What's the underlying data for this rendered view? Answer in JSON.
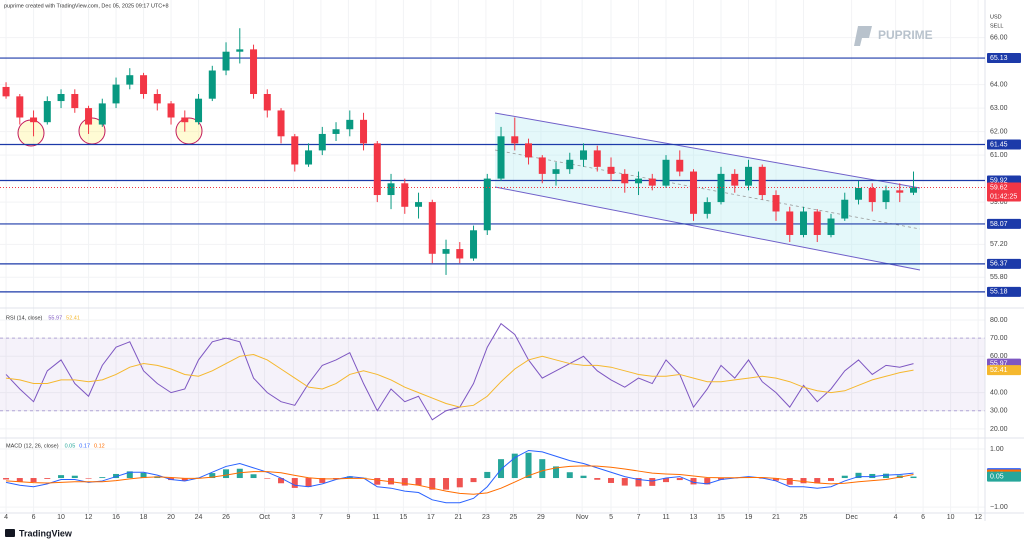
{
  "header": {
    "credit": "puprime created with TradingView.com, Dec 05, 2025 09:17 UTC+8",
    "brand": "PUPRIME",
    "footer": "TradingView"
  },
  "chart_data": [
    {
      "type": "candlestick",
      "currency": "USD",
      "side": "SELL",
      "up_color": "#089981",
      "down_color": "#f23645",
      "open": [
        63.9,
        63.5,
        62.6,
        62.4,
        63.3,
        63.6,
        63.0,
        62.3,
        63.2,
        64.0,
        64.4,
        63.6,
        63.2,
        62.6,
        62.4,
        63.4,
        64.6,
        65.4,
        65.5,
        63.6,
        62.9,
        61.8,
        60.6,
        61.2,
        61.9,
        62.1,
        62.5,
        61.5,
        59.3,
        59.8,
        58.8,
        59.0,
        56.8,
        57.0,
        56.6,
        57.8,
        60.0,
        61.8,
        61.5,
        60.9,
        60.2,
        60.4,
        60.8,
        61.2,
        60.5,
        60.2,
        59.8,
        60.0,
        59.7,
        60.8,
        60.3,
        58.5,
        59.0,
        60.2,
        59.7,
        60.5,
        59.3,
        58.6,
        57.6,
        58.6,
        57.6,
        58.3,
        59.1,
        59.6,
        59.0,
        59.5,
        59.4
      ],
      "high": [
        64.1,
        63.6,
        62.9,
        63.5,
        63.8,
        63.8,
        63.1,
        63.4,
        64.3,
        64.7,
        64.5,
        63.8,
        63.3,
        62.9,
        63.6,
        64.8,
        65.8,
        66.4,
        65.7,
        63.8,
        63.0,
        61.9,
        61.5,
        62.2,
        62.4,
        62.9,
        62.8,
        61.6,
        60.2,
        60.0,
        59.4,
        59.1,
        57.4,
        57.3,
        58.0,
        60.2,
        62.2,
        62.6,
        61.7,
        61.0,
        60.7,
        61.1,
        61.5,
        61.4,
        60.9,
        60.4,
        60.3,
        60.2,
        61.0,
        61.2,
        60.4,
        59.2,
        60.5,
        60.4,
        60.8,
        60.6,
        59.5,
        58.8,
        58.8,
        58.7,
        58.5,
        59.4,
        59.9,
        59.8,
        59.7,
        59.8,
        60.3
      ],
      "low": [
        63.4,
        62.3,
        61.8,
        62.3,
        63.0,
        62.8,
        61.9,
        62.2,
        63.0,
        63.8,
        63.4,
        62.9,
        62.3,
        62.0,
        62.3,
        63.3,
        64.4,
        64.9,
        63.4,
        62.6,
        61.5,
        60.3,
        60.5,
        61.0,
        61.6,
        61.8,
        61.2,
        59.0,
        58.7,
        58.5,
        58.3,
        56.4,
        55.9,
        56.4,
        56.5,
        57.6,
        59.9,
        61.2,
        60.6,
        59.8,
        59.7,
        60.2,
        60.5,
        60.3,
        59.9,
        59.4,
        59.3,
        59.5,
        59.6,
        60.1,
        58.2,
        58.3,
        58.9,
        59.4,
        59.5,
        59.1,
        58.2,
        57.3,
        57.5,
        57.3,
        57.5,
        58.2,
        58.9,
        58.6,
        58.7,
        59.0,
        59.3
      ],
      "close": [
        63.5,
        62.6,
        62.4,
        63.3,
        63.6,
        63.0,
        62.3,
        63.2,
        64.0,
        64.4,
        63.6,
        63.2,
        62.6,
        62.4,
        63.4,
        64.6,
        65.4,
        65.5,
        63.6,
        62.9,
        61.8,
        60.6,
        61.2,
        61.9,
        62.1,
        62.5,
        61.5,
        59.3,
        59.8,
        58.8,
        59.0,
        56.8,
        57.0,
        56.6,
        57.8,
        60.0,
        61.8,
        61.5,
        60.9,
        60.2,
        60.4,
        60.8,
        61.2,
        60.5,
        60.2,
        59.8,
        60.0,
        59.7,
        60.8,
        60.3,
        58.5,
        59.0,
        60.2,
        59.7,
        60.5,
        59.3,
        58.6,
        57.6,
        58.6,
        57.6,
        58.3,
        59.1,
        59.6,
        59.0,
        59.5,
        59.4,
        59.62
      ],
      "xlim": [
        -0.44,
        71.2
      ],
      "xticks": [
        {
          "value": 0,
          "label": "4"
        },
        {
          "value": 2,
          "label": "6"
        },
        {
          "value": 4,
          "label": "10"
        },
        {
          "value": 6,
          "label": "12"
        },
        {
          "value": 8,
          "label": "16"
        },
        {
          "value": 10,
          "label": "18"
        },
        {
          "value": 12,
          "label": "20"
        },
        {
          "value": 14,
          "label": "24"
        },
        {
          "value": 16,
          "label": "26"
        },
        {
          "value": 18.8,
          "label": "Oct"
        },
        {
          "value": 20.9,
          "label": "3"
        },
        {
          "value": 22.9,
          "label": "7"
        },
        {
          "value": 24.9,
          "label": "9"
        },
        {
          "value": 26.9,
          "label": "11"
        },
        {
          "value": 28.9,
          "label": "15"
        },
        {
          "value": 30.9,
          "label": "17"
        },
        {
          "value": 32.9,
          "label": "21"
        },
        {
          "value": 34.9,
          "label": "23"
        },
        {
          "value": 36.9,
          "label": "25"
        },
        {
          "value": 38.9,
          "label": "29"
        },
        {
          "value": 41.9,
          "label": "Nov"
        },
        {
          "value": 44,
          "label": "5"
        },
        {
          "value": 46,
          "label": "7"
        },
        {
          "value": 48,
          "label": "11"
        },
        {
          "value": 50,
          "label": "13"
        },
        {
          "value": 52,
          "label": "15"
        },
        {
          "value": 54,
          "label": "19"
        },
        {
          "value": 56,
          "label": "21"
        },
        {
          "value": 58,
          "label": "25"
        },
        {
          "value": 61.5,
          "label": "Dec"
        },
        {
          "value": 64.7,
          "label": "4"
        },
        {
          "value": 66.7,
          "label": "6"
        },
        {
          "value": 68.7,
          "label": "10"
        },
        {
          "value": 70.7,
          "label": "12"
        }
      ],
      "ylim": [
        54.62,
        67.09
      ],
      "yticks": [
        {
          "value": 66,
          "label": "66.00"
        },
        {
          "value": 64,
          "label": "64.00"
        },
        {
          "value": 63,
          "label": "63.00"
        },
        {
          "value": 62,
          "label": "62.00"
        },
        {
          "value": 61,
          "label": "61.00"
        },
        {
          "value": 59,
          "label": "59.00"
        },
        {
          "value": 57.2,
          "label": "57.20"
        },
        {
          "value": 55.8,
          "label": "55.80"
        }
      ],
      "levels": [
        65.13,
        61.45,
        59.92,
        58.07,
        56.37,
        55.18
      ],
      "level_color": "#1c3aa9",
      "last_price": 59.62,
      "countdown": "01:42:25",
      "last_color": "#f23645"
    },
    {
      "type": "line",
      "title": "RSI (14, close)",
      "series": [
        {
          "color": "#7e57c2",
          "values": [
            50,
            42,
            35,
            52,
            58,
            45,
            38,
            55,
            65,
            68,
            52,
            45,
            40,
            42,
            58,
            68,
            70,
            68,
            48,
            40,
            35,
            33,
            45,
            55,
            58,
            62,
            45,
            30,
            42,
            35,
            38,
            25,
            30,
            32,
            45,
            65,
            78,
            72,
            58,
            48,
            52,
            56,
            60,
            52,
            47,
            43,
            48,
            45,
            58,
            50,
            32,
            42,
            55,
            48,
            58,
            46,
            40,
            32,
            44,
            35,
            42,
            52,
            58,
            50,
            55,
            54,
            55.97
          ]
        },
        {
          "color": "#f5b82e",
          "values": [
            48,
            47,
            45,
            45,
            47,
            47,
            46,
            47,
            50,
            54,
            56,
            55,
            53,
            50,
            49,
            52,
            56,
            60,
            61,
            58,
            53,
            48,
            43,
            42,
            45,
            50,
            52,
            50,
            47,
            43,
            40,
            37,
            34,
            32,
            33,
            38,
            46,
            53,
            58,
            60,
            58,
            56,
            55,
            55,
            54,
            52,
            50,
            49,
            49,
            50,
            48,
            46,
            46,
            47,
            48,
            49,
            48,
            46,
            43,
            41,
            40,
            41,
            44,
            47,
            49,
            51,
            52.41
          ]
        }
      ],
      "band": [
        30,
        70
      ],
      "ylim": [
        16.1,
        84.4
      ],
      "yticks": [
        {
          "value": 80,
          "label": "80.00"
        },
        {
          "value": 70,
          "label": "70.00"
        },
        {
          "value": 60,
          "label": "60.00"
        },
        {
          "value": 40,
          "label": "40.00"
        },
        {
          "value": 30,
          "label": "30.00"
        },
        {
          "value": 20,
          "label": "20.00"
        }
      ]
    },
    {
      "type": "macd",
      "title": "MACD (12, 26, close)",
      "series": [
        {
          "color": "#26a69a",
          "down_color": "#ef5350",
          "values": [
            -0.05,
            -0.12,
            -0.14,
            -0.03,
            0.1,
            0.08,
            -0.02,
            0.03,
            0.14,
            0.23,
            0.18,
            0.06,
            -0.07,
            -0.09,
            0.01,
            0.17,
            0.3,
            0.32,
            0.13,
            -0.02,
            -0.18,
            -0.34,
            -0.31,
            -0.17,
            -0.02,
            0.06,
            0.01,
            -0.23,
            -0.22,
            -0.26,
            -0.25,
            -0.4,
            -0.4,
            -0.32,
            -0.14,
            0.21,
            0.65,
            0.84,
            0.87,
            0.65,
            0.4,
            0.2,
            0.08,
            -0.06,
            -0.17,
            -0.26,
            -0.29,
            -0.27,
            -0.14,
            -0.07,
            -0.22,
            -0.22,
            -0.06,
            -0.01,
            0.03,
            -0.02,
            -0.09,
            -0.23,
            -0.18,
            -0.18,
            -0.1,
            0.08,
            0.18,
            0.14,
            0.15,
            0.09,
            0.05
          ]
        },
        {
          "color": "#2962ff",
          "values": [
            -0.15,
            -0.25,
            -0.3,
            -0.2,
            -0.05,
            -0.05,
            -0.15,
            -0.1,
            0.05,
            0.2,
            0.2,
            0.1,
            -0.05,
            -0.1,
            0.0,
            0.2,
            0.4,
            0.5,
            0.35,
            0.2,
            0.0,
            -0.25,
            -0.3,
            -0.2,
            -0.05,
            0.05,
            0.0,
            -0.3,
            -0.35,
            -0.45,
            -0.5,
            -0.75,
            -0.85,
            -0.85,
            -0.7,
            -0.3,
            0.3,
            0.7,
            0.95,
            0.9,
            0.75,
            0.6,
            0.5,
            0.35,
            0.2,
            0.05,
            -0.05,
            -0.1,
            0.0,
            0.05,
            -0.15,
            -0.2,
            -0.05,
            0.0,
            0.05,
            0.0,
            -0.1,
            -0.3,
            -0.3,
            -0.35,
            -0.3,
            -0.1,
            0.05,
            0.05,
            0.1,
            0.12,
            0.17
          ]
        },
        {
          "color": "#ff6d00",
          "values": [
            -0.1,
            -0.13,
            -0.16,
            -0.17,
            -0.15,
            -0.13,
            -0.13,
            -0.13,
            -0.09,
            -0.03,
            0.02,
            0.04,
            0.02,
            -0.01,
            -0.01,
            0.03,
            0.1,
            0.18,
            0.22,
            0.22,
            0.18,
            0.09,
            0.01,
            -0.03,
            -0.03,
            -0.01,
            -0.01,
            -0.07,
            -0.13,
            -0.19,
            -0.25,
            -0.35,
            -0.45,
            -0.53,
            -0.56,
            -0.51,
            -0.35,
            -0.14,
            0.08,
            0.25,
            0.35,
            0.4,
            0.42,
            0.41,
            0.37,
            0.31,
            0.24,
            0.17,
            0.14,
            0.12,
            0.07,
            0.02,
            0.01,
            0.01,
            0.02,
            0.02,
            -0.01,
            -0.07,
            -0.12,
            -0.17,
            -0.2,
            -0.18,
            -0.13,
            -0.09,
            -0.05,
            0.03,
            0.12
          ]
        }
      ],
      "ylim": [
        -1.17,
        1.31
      ],
      "yticks": [
        {
          "value": 1,
          "label": "1.00"
        },
        {
          "value": -1,
          "label": "−1.00"
        }
      ]
    }
  ]
}
